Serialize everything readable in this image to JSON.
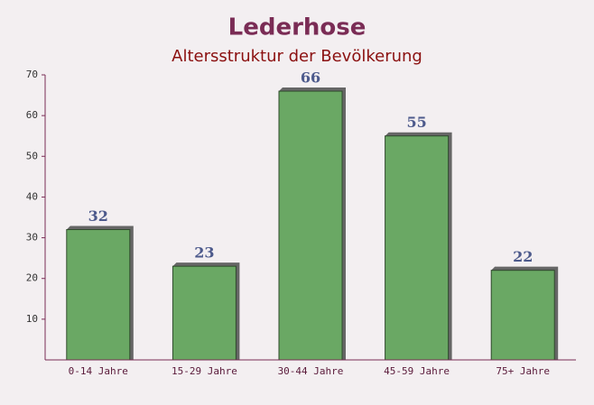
{
  "chart_data": {
    "type": "bar",
    "title": "Lederhose",
    "subtitle": "Altersstruktur der Bevölkerung",
    "categories": [
      "0-14 Jahre",
      "15-29 Jahre",
      "30-44 Jahre",
      "45-59 Jahre",
      "75+ Jahre"
    ],
    "values": [
      32,
      23,
      66,
      55,
      22
    ],
    "color": "#6aa864",
    "ylim": [
      0,
      70
    ],
    "yticks": [
      10,
      20,
      30,
      40,
      50,
      60,
      70
    ],
    "grid": false
  }
}
